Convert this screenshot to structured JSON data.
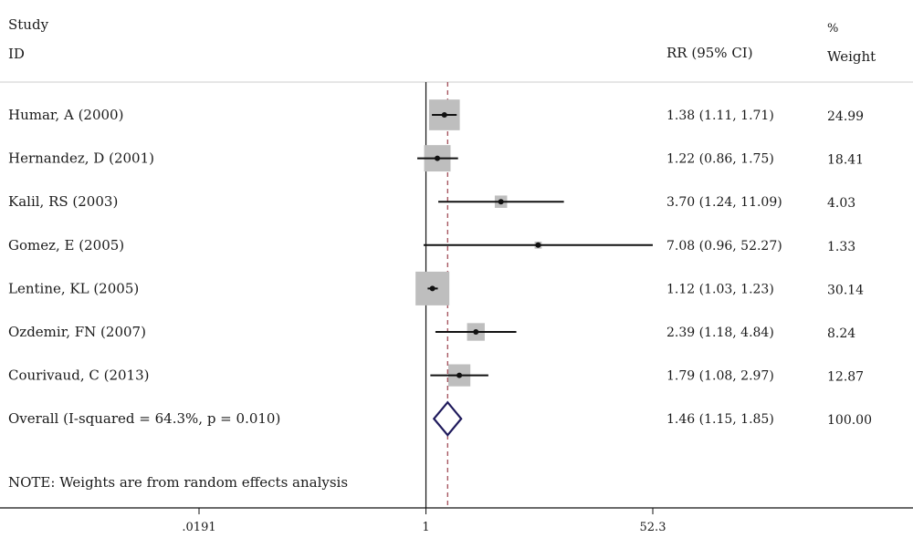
{
  "chart_data": {
    "type": "forest",
    "columns": {
      "study_header_line1": "Study",
      "study_header_line2": "ID",
      "effect_header": "RR (95% CI)",
      "weight_header_line1": "%",
      "weight_header_line2": "Weight"
    },
    "studies": [
      {
        "label": "Humar, A (2000)",
        "rr": 1.38,
        "lo": 1.11,
        "hi": 1.71,
        "ci_text": "1.38 (1.11, 1.71)",
        "weight": 24.99,
        "weight_text": "24.99"
      },
      {
        "label": "Hernandez, D (2001)",
        "rr": 1.22,
        "lo": 0.86,
        "hi": 1.75,
        "ci_text": "1.22 (0.86, 1.75)",
        "weight": 18.41,
        "weight_text": "18.41"
      },
      {
        "label": "Kalil, RS (2003)",
        "rr": 3.7,
        "lo": 1.24,
        "hi": 11.09,
        "ci_text": "3.70 (1.24, 11.09)",
        "weight": 4.03,
        "weight_text": "4.03"
      },
      {
        "label": "Gomez, E (2005)",
        "rr": 7.08,
        "lo": 0.96,
        "hi": 52.27,
        "ci_text": "7.08 (0.96, 52.27)",
        "weight": 1.33,
        "weight_text": "1.33"
      },
      {
        "label": "Lentine, KL (2005)",
        "rr": 1.12,
        "lo": 1.03,
        "hi": 1.23,
        "ci_text": "1.12 (1.03, 1.23)",
        "weight": 30.14,
        "weight_text": "30.14"
      },
      {
        "label": "Ozdemir, FN (2007)",
        "rr": 2.39,
        "lo": 1.18,
        "hi": 4.84,
        "ci_text": "2.39 (1.18, 4.84)",
        "weight": 8.24,
        "weight_text": "8.24"
      },
      {
        "label": "Courivaud, C (2013)",
        "rr": 1.79,
        "lo": 1.08,
        "hi": 2.97,
        "ci_text": "1.79 (1.08, 2.97)",
        "weight": 12.87,
        "weight_text": "12.87"
      }
    ],
    "overall": {
      "label": "Overall (I-squared = 64.3%, p = 0.010)",
      "rr": 1.46,
      "lo": 1.15,
      "hi": 1.85,
      "ci_text": "1.46 (1.15, 1.85)",
      "weight_text": "100.00"
    },
    "note": "NOTE: Weights are from random effects analysis",
    "x_scale": "log",
    "xlim": [
      0.0191,
      52.3
    ],
    "x_ticks": [
      {
        "value": 0.0191,
        "label": ".0191"
      },
      {
        "value": 1,
        "label": "1"
      },
      {
        "value": 52.3,
        "label": "52.3"
      }
    ],
    "null_line": 1,
    "colors": {
      "box": "#bebebe",
      "line": "#111111",
      "diamond": "#1f1a5c",
      "pooled_line": "#9a3f4a",
      "separator": "#e6e6e6"
    }
  }
}
